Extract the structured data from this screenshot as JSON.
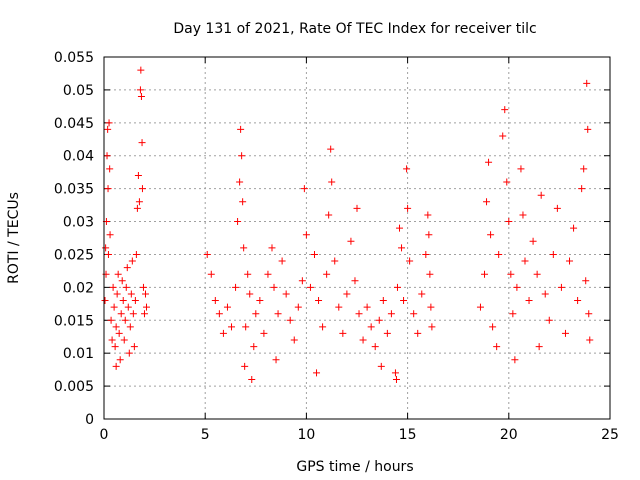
{
  "chart_data": {
    "type": "scatter",
    "title": "Day 131 of 2021, Rate Of TEC Index for receiver tilc",
    "xlabel": "GPS time / hours",
    "ylabel": "ROTI / TECUs",
    "xlim": [
      0,
      25
    ],
    "ylim": [
      0,
      0.055
    ],
    "xticks": [
      0,
      5,
      10,
      15,
      20,
      25
    ],
    "yticks": [
      0,
      0.005,
      0.01,
      0.015,
      0.02,
      0.025,
      0.03,
      0.035,
      0.04,
      0.045,
      0.05,
      0.055
    ],
    "grid": true,
    "marker": "plus",
    "color": "#ff0000",
    "series": [
      {
        "points": [
          [
            0.05,
            0.018
          ],
          [
            0.1,
            0.022
          ],
          [
            0.12,
            0.03
          ],
          [
            0.15,
            0.04
          ],
          [
            0.18,
            0.044
          ],
          [
            0.2,
            0.035
          ],
          [
            0.22,
            0.025
          ],
          [
            0.25,
            0.045
          ],
          [
            0.28,
            0.038
          ],
          [
            0.3,
            0.028
          ],
          [
            0.35,
            0.015
          ],
          [
            0.4,
            0.012
          ],
          [
            0.45,
            0.02
          ],
          [
            0.5,
            0.017
          ],
          [
            0.55,
            0.011
          ],
          [
            0.6,
            0.014
          ],
          [
            0.65,
            0.019
          ],
          [
            0.7,
            0.022
          ],
          [
            0.75,
            0.013
          ],
          [
            0.8,
            0.009
          ],
          [
            0.85,
            0.016
          ],
          [
            0.9,
            0.021
          ],
          [
            0.95,
            0.018
          ],
          [
            1.0,
            0.012
          ],
          [
            1.05,
            0.015
          ],
          [
            1.1,
            0.02
          ],
          [
            1.15,
            0.023
          ],
          [
            1.2,
            0.017
          ],
          [
            1.25,
            0.01
          ],
          [
            1.3,
            0.014
          ],
          [
            1.35,
            0.019
          ],
          [
            1.4,
            0.024
          ],
          [
            1.45,
            0.016
          ],
          [
            1.5,
            0.011
          ],
          [
            1.55,
            0.018
          ],
          [
            1.6,
            0.025
          ],
          [
            1.65,
            0.032
          ],
          [
            1.7,
            0.037
          ],
          [
            1.75,
            0.033
          ],
          [
            1.8,
            0.05
          ],
          [
            1.82,
            0.053
          ],
          [
            1.85,
            0.049
          ],
          [
            1.88,
            0.042
          ],
          [
            1.9,
            0.035
          ],
          [
            1.95,
            0.02
          ],
          [
            2.0,
            0.016
          ],
          [
            2.05,
            0.019
          ],
          [
            2.1,
            0.017
          ],
          [
            0.08,
            0.026
          ],
          [
            0.6,
            0.008
          ],
          [
            5.1,
            0.025
          ],
          [
            5.3,
            0.022
          ],
          [
            5.5,
            0.018
          ],
          [
            5.7,
            0.016
          ],
          [
            5.9,
            0.013
          ],
          [
            6.1,
            0.017
          ],
          [
            6.3,
            0.014
          ],
          [
            6.5,
            0.02
          ],
          [
            6.6,
            0.03
          ],
          [
            6.7,
            0.036
          ],
          [
            6.75,
            0.044
          ],
          [
            6.8,
            0.04
          ],
          [
            6.85,
            0.033
          ],
          [
            6.9,
            0.026
          ],
          [
            6.95,
            0.008
          ],
          [
            7.0,
            0.014
          ],
          [
            7.1,
            0.022
          ],
          [
            7.2,
            0.019
          ],
          [
            7.3,
            0.006
          ],
          [
            7.4,
            0.011
          ],
          [
            7.5,
            0.016
          ],
          [
            7.7,
            0.018
          ],
          [
            7.9,
            0.013
          ],
          [
            8.1,
            0.022
          ],
          [
            8.3,
            0.026
          ],
          [
            8.4,
            0.02
          ],
          [
            8.6,
            0.016
          ],
          [
            8.8,
            0.024
          ],
          [
            9.0,
            0.019
          ],
          [
            9.2,
            0.015
          ],
          [
            9.4,
            0.012
          ],
          [
            9.6,
            0.017
          ],
          [
            9.8,
            0.021
          ],
          [
            9.9,
            0.035
          ],
          [
            10.0,
            0.028
          ],
          [
            10.2,
            0.02
          ],
          [
            10.4,
            0.025
          ],
          [
            10.6,
            0.018
          ],
          [
            10.8,
            0.014
          ],
          [
            11.0,
            0.022
          ],
          [
            11.1,
            0.031
          ],
          [
            11.2,
            0.041
          ],
          [
            11.25,
            0.036
          ],
          [
            11.4,
            0.024
          ],
          [
            11.6,
            0.017
          ],
          [
            11.8,
            0.013
          ],
          [
            12.0,
            0.019
          ],
          [
            12.2,
            0.027
          ],
          [
            12.4,
            0.021
          ],
          [
            12.5,
            0.032
          ],
          [
            12.6,
            0.016
          ],
          [
            12.8,
            0.012
          ],
          [
            13.0,
            0.017
          ],
          [
            13.2,
            0.014
          ],
          [
            13.4,
            0.011
          ],
          [
            13.6,
            0.015
          ],
          [
            13.8,
            0.018
          ],
          [
            14.0,
            0.013
          ],
          [
            14.2,
            0.016
          ],
          [
            14.4,
            0.007
          ],
          [
            14.45,
            0.006
          ],
          [
            14.5,
            0.02
          ],
          [
            14.6,
            0.029
          ],
          [
            14.7,
            0.026
          ],
          [
            14.8,
            0.018
          ],
          [
            14.95,
            0.038
          ],
          [
            15.0,
            0.032
          ],
          [
            15.1,
            0.024
          ],
          [
            15.3,
            0.016
          ],
          [
            15.5,
            0.013
          ],
          [
            15.7,
            0.019
          ],
          [
            15.9,
            0.025
          ],
          [
            16.0,
            0.031
          ],
          [
            16.05,
            0.028
          ],
          [
            16.1,
            0.022
          ],
          [
            16.15,
            0.017
          ],
          [
            16.2,
            0.014
          ],
          [
            8.5,
            0.009
          ],
          [
            10.5,
            0.007
          ],
          [
            13.7,
            0.008
          ],
          [
            18.6,
            0.017
          ],
          [
            18.8,
            0.022
          ],
          [
            18.9,
            0.033
          ],
          [
            19.0,
            0.039
          ],
          [
            19.1,
            0.028
          ],
          [
            19.2,
            0.014
          ],
          [
            19.4,
            0.011
          ],
          [
            19.5,
            0.025
          ],
          [
            19.7,
            0.043
          ],
          [
            19.8,
            0.047
          ],
          [
            19.9,
            0.036
          ],
          [
            20.0,
            0.03
          ],
          [
            20.1,
            0.022
          ],
          [
            20.2,
            0.016
          ],
          [
            20.4,
            0.02
          ],
          [
            20.6,
            0.038
          ],
          [
            20.7,
            0.031
          ],
          [
            20.8,
            0.024
          ],
          [
            21.0,
            0.018
          ],
          [
            21.2,
            0.027
          ],
          [
            21.4,
            0.022
          ],
          [
            21.6,
            0.034
          ],
          [
            21.8,
            0.019
          ],
          [
            22.0,
            0.015
          ],
          [
            22.2,
            0.025
          ],
          [
            22.4,
            0.032
          ],
          [
            22.6,
            0.02
          ],
          [
            22.8,
            0.013
          ],
          [
            23.0,
            0.024
          ],
          [
            23.2,
            0.029
          ],
          [
            23.4,
            0.018
          ],
          [
            23.6,
            0.035
          ],
          [
            23.7,
            0.038
          ],
          [
            23.8,
            0.021
          ],
          [
            23.85,
            0.051
          ],
          [
            23.9,
            0.044
          ],
          [
            23.95,
            0.016
          ],
          [
            24.0,
            0.012
          ],
          [
            21.5,
            0.011
          ],
          [
            20.3,
            0.009
          ]
        ]
      }
    ]
  }
}
